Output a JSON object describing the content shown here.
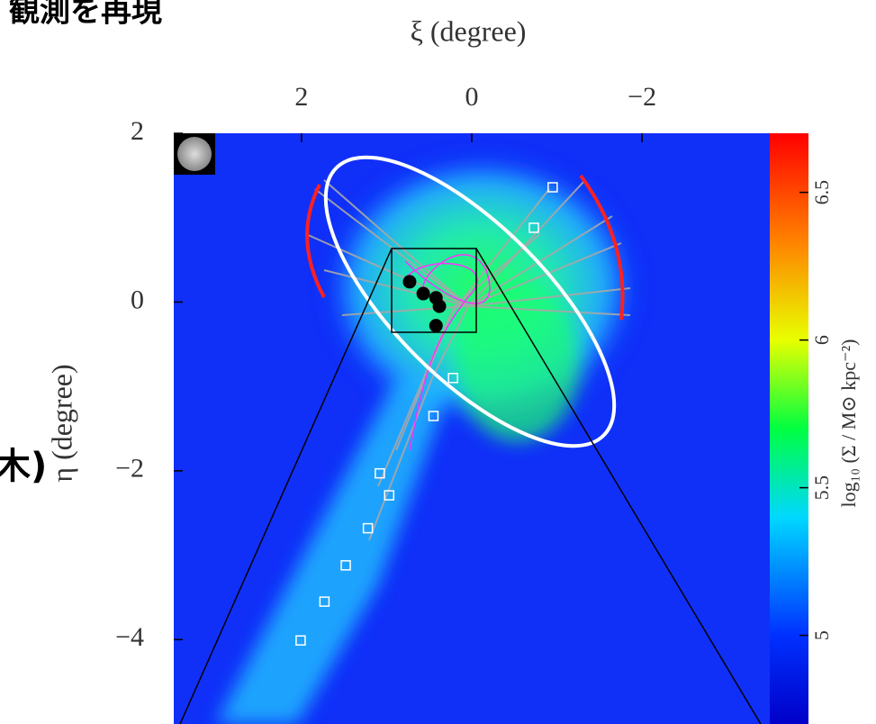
{
  "heading": "観測を再現",
  "fragment": "木)",
  "chart_data": {
    "type": "scatter",
    "xlabel": "ξ (degree)",
    "ylabel": "η (degree)",
    "xlim": [
      3.5,
      -3.5
    ],
    "ylim": [
      -5,
      2
    ],
    "xticks": [
      2,
      0,
      {
        "value": -2,
        "label": "−2"
      }
    ],
    "yticks": [
      2,
      0,
      {
        "value": -2,
        "label": "−2"
      },
      {
        "value": -4,
        "label": "−4"
      }
    ],
    "colorbar": {
      "label": "log₁₀ (Σ / M⊙ kpc⁻²)",
      "lim": [
        4.7,
        6.7
      ],
      "ticks": [
        5,
        5.5,
        6,
        6.5
      ]
    },
    "series": [
      {
        "marker": "square",
        "color": "#ffffff",
        "x": [
          -0.95,
          -0.73,
          0.22,
          0.45,
          1.08,
          0.97,
          1.22,
          1.48,
          1.73,
          2.01
        ],
        "y": [
          1.36,
          0.88,
          -0.9,
          -1.35,
          -2.03,
          -2.29,
          -2.68,
          -3.12,
          -3.55,
          -4.01
        ]
      },
      {
        "marker": "circle",
        "color": "#000000",
        "x": [
          0.73,
          0.57,
          0.42,
          0.38,
          0.42
        ],
        "y": [
          0.24,
          0.1,
          0.05,
          -0.05,
          -0.28
        ]
      }
    ]
  }
}
